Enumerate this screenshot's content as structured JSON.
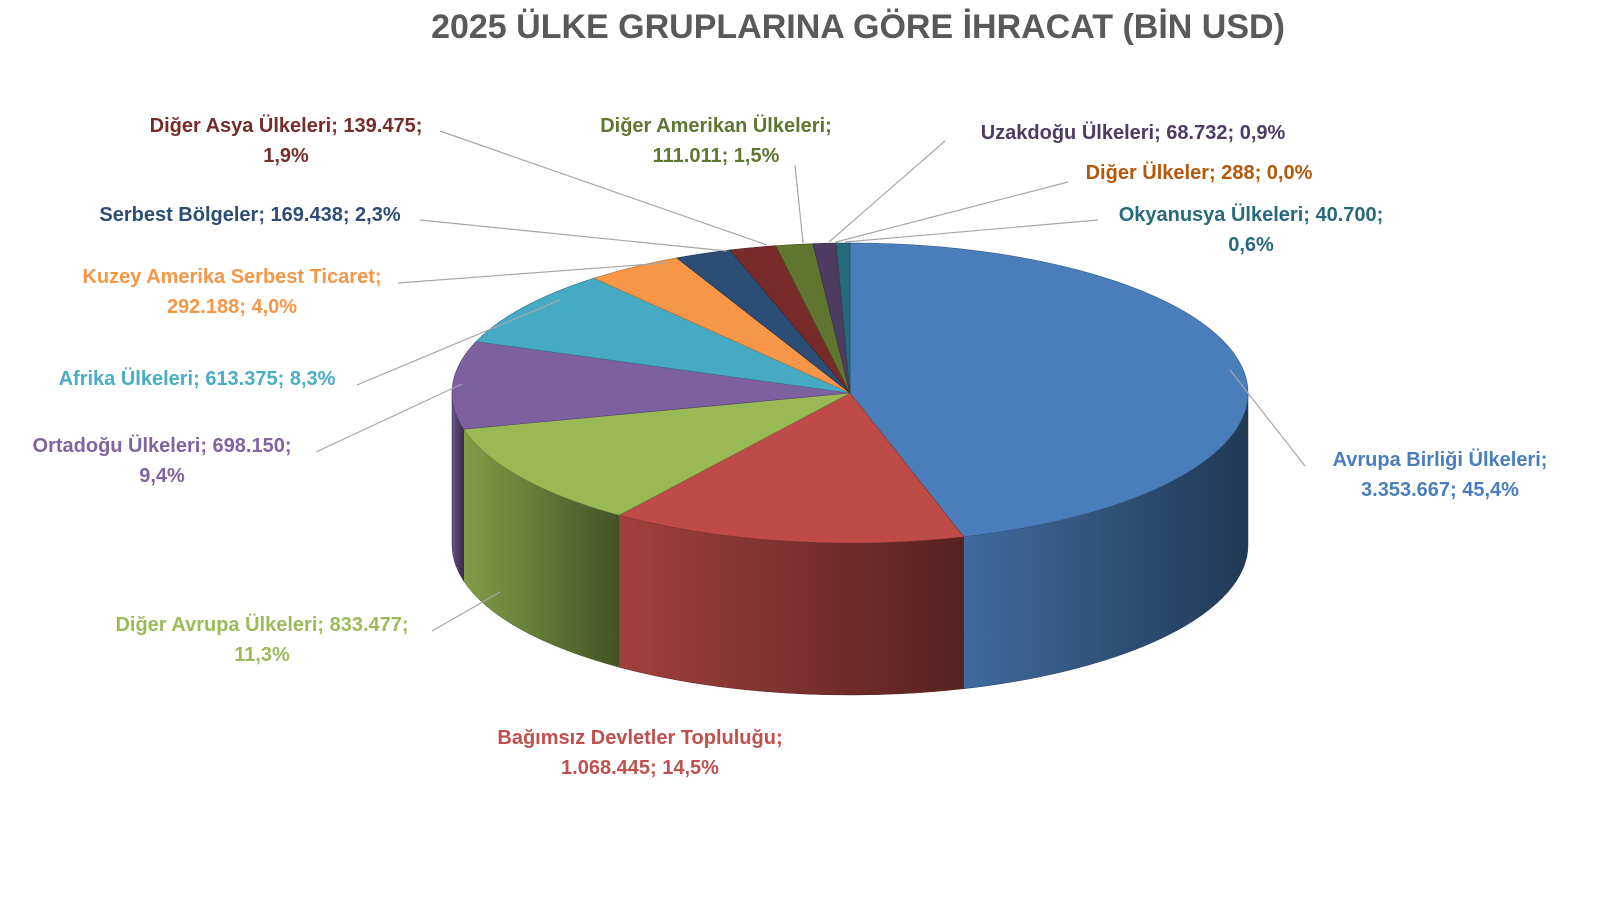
{
  "chart_data": {
    "type": "pie",
    "style": "3d",
    "title": "2025 ÜLKE GRUPLARINA GÖRE İHRACAT (BİN USD)",
    "unit": "BİN USD",
    "slices": [
      {
        "name": "Avrupa Birliği Ülkeleri",
        "value_label": "3.353.667",
        "value": 3353667,
        "percent_label": "45,4%",
        "percent": 45.4,
        "color": "#4a7ebb",
        "label_color": "#4a7ebb"
      },
      {
        "name": "Bağımsız Devletler Topluluğu",
        "value_label": "1.068.445",
        "value": 1068445,
        "percent_label": "14,5%",
        "percent": 14.5,
        "color": "#be4b48",
        "label_color": "#c0504d"
      },
      {
        "name": "Diğer Avrupa Ülkeleri",
        "value_label": "833.477",
        "value": 833477,
        "percent_label": "11,3%",
        "percent": 11.3,
        "color": "#98b954",
        "label_color": "#9bbb59"
      },
      {
        "name": "Ortadoğu Ülkeleri",
        "value_label": "698.150",
        "value": 698150,
        "percent_label": "9,4%",
        "percent": 9.4,
        "color": "#7d60a0",
        "label_color": "#8064a2"
      },
      {
        "name": "Afrika Ülkeleri",
        "value_label": "613.375",
        "value": 613375,
        "percent_label": "8,3%",
        "percent": 8.3,
        "color": "#46aac5",
        "label_color": "#4bacc6"
      },
      {
        "name": "Kuzey Amerika Serbest Ticaret",
        "value_label": "292.188",
        "value": 292188,
        "percent_label": "4,0%",
        "percent": 4.0,
        "color": "#f79646",
        "label_color": "#f79646"
      },
      {
        "name": "Serbest Bölgeler",
        "value_label": "169.438",
        "value": 169438,
        "percent_label": "2,3%",
        "percent": 2.3,
        "color": "#2c4d75",
        "label_color": "#2c4d75"
      },
      {
        "name": "Diğer Asya Ülkeleri",
        "value_label": "139.475",
        "value": 139475,
        "percent_label": "1,9%",
        "percent": 1.9,
        "color": "#772c2a",
        "label_color": "#772c2a"
      },
      {
        "name": "Diğer Amerikan Ülkeleri",
        "value_label": "111.011",
        "value": 111011,
        "percent_label": "1,5%",
        "percent": 1.5,
        "color": "#5f7530",
        "label_color": "#5f7530"
      },
      {
        "name": "Uzakdoğu Ülkeleri",
        "value_label": "68.732",
        "value": 68732,
        "percent_label": "0,9%",
        "percent": 0.9,
        "color": "#4d3b62",
        "label_color": "#4d3b62"
      },
      {
        "name": "Diğer Ülkeler",
        "value_label": "288",
        "value": 288,
        "percent_label": "0,0%",
        "percent": 0.0,
        "color": "#b65708",
        "label_color": "#b65708"
      },
      {
        "name": "Okyanusya Ülkeleri",
        "value_label": "40.700",
        "value": 40700,
        "percent_label": "0,6%",
        "percent": 0.6,
        "color": "#276a7c",
        "label_color": "#276a7c"
      }
    ]
  }
}
